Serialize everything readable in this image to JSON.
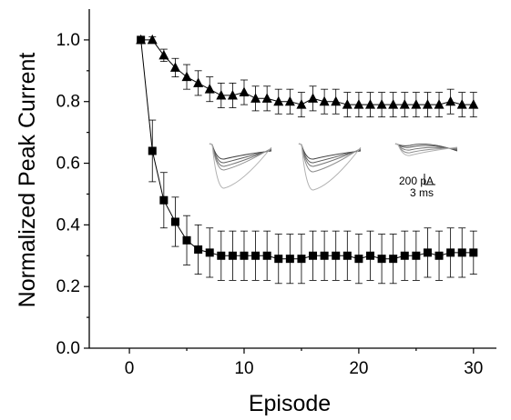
{
  "chart_data": {
    "type": "scatter",
    "xlabel": "Episode",
    "ylabel": "Normalized Peak Current",
    "xlim": [
      -3.5,
      32
    ],
    "ylim": [
      0.0,
      1.1
    ],
    "xticks": [
      "0",
      "10",
      "20",
      "30"
    ],
    "yticks": [
      "0.0",
      "0.2",
      "0.4",
      "0.6",
      "0.8",
      "1.0"
    ],
    "grid": false,
    "series": [
      {
        "marker": "triangle",
        "color": "#000000",
        "x": [
          1,
          2,
          3,
          4,
          5,
          6,
          7,
          8,
          9,
          10,
          11,
          12,
          13,
          14,
          15,
          16,
          17,
          18,
          19,
          20,
          21,
          22,
          23,
          24,
          25,
          26,
          27,
          28,
          29,
          30
        ],
        "values": [
          1.0,
          1.0,
          0.95,
          0.91,
          0.88,
          0.86,
          0.84,
          0.82,
          0.82,
          0.83,
          0.81,
          0.81,
          0.8,
          0.8,
          0.79,
          0.81,
          0.8,
          0.8,
          0.79,
          0.79,
          0.79,
          0.79,
          0.79,
          0.79,
          0.79,
          0.79,
          0.79,
          0.8,
          0.79,
          0.79
        ],
        "error": [
          0.0,
          0.01,
          0.02,
          0.03,
          0.04,
          0.04,
          0.04,
          0.04,
          0.04,
          0.04,
          0.04,
          0.04,
          0.04,
          0.04,
          0.04,
          0.04,
          0.04,
          0.04,
          0.04,
          0.04,
          0.04,
          0.04,
          0.04,
          0.04,
          0.04,
          0.04,
          0.04,
          0.04,
          0.04,
          0.04
        ]
      },
      {
        "marker": "square",
        "color": "#000000",
        "x": [
          1,
          2,
          3,
          4,
          5,
          6,
          7,
          8,
          9,
          10,
          11,
          12,
          13,
          14,
          15,
          16,
          17,
          18,
          19,
          20,
          21,
          22,
          23,
          24,
          25,
          26,
          27,
          28,
          29,
          30
        ],
        "values": [
          1.0,
          0.64,
          0.48,
          0.41,
          0.35,
          0.32,
          0.31,
          0.3,
          0.3,
          0.3,
          0.3,
          0.3,
          0.29,
          0.29,
          0.29,
          0.3,
          0.3,
          0.3,
          0.3,
          0.29,
          0.3,
          0.29,
          0.29,
          0.3,
          0.3,
          0.31,
          0.3,
          0.31,
          0.31,
          0.31
        ],
        "error": [
          0.0,
          0.1,
          0.09,
          0.08,
          0.08,
          0.08,
          0.08,
          0.08,
          0.08,
          0.08,
          0.08,
          0.08,
          0.08,
          0.08,
          0.08,
          0.08,
          0.08,
          0.08,
          0.08,
          0.08,
          0.08,
          0.08,
          0.08,
          0.08,
          0.08,
          0.08,
          0.08,
          0.08,
          0.08,
          0.07
        ]
      }
    ],
    "inset": {
      "scale_bar_labels": [
        "200 pA",
        "3 ms"
      ],
      "trace_colors": [
        "#404040",
        "#5a5a5a",
        "#747474",
        "#8e8e8e",
        "#b0b0b0"
      ]
    }
  }
}
